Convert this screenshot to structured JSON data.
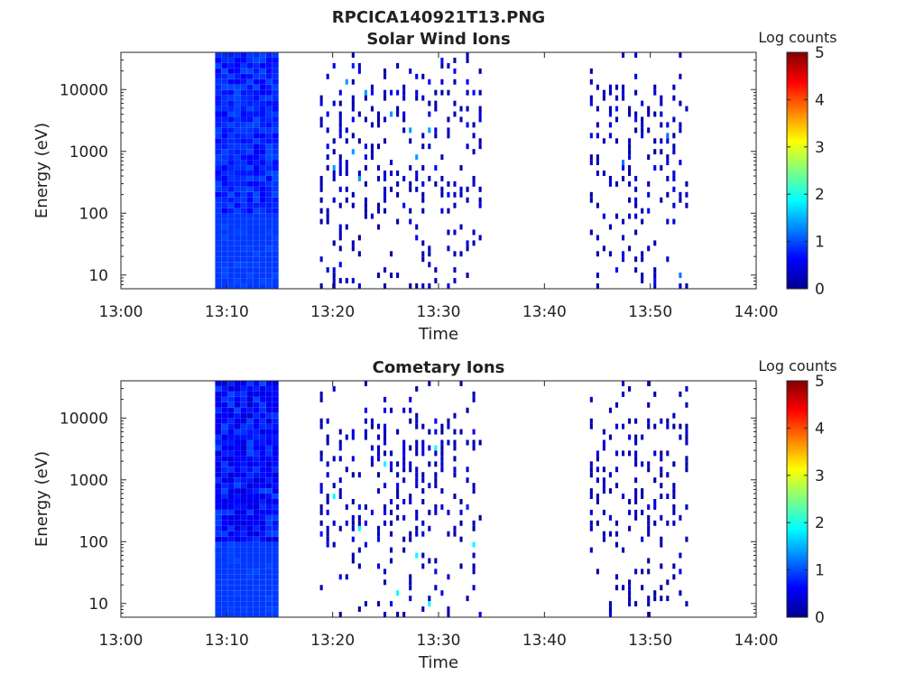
{
  "figure": {
    "title": "RPCICA140921T13.PNG"
  },
  "colormap": {
    "name": "jet",
    "stops": [
      "#00008f",
      "#0000ff",
      "#0080ff",
      "#00ffff",
      "#80ff80",
      "#ffff00",
      "#ff8000",
      "#ff0000",
      "#800000"
    ]
  },
  "chart_data": [
    {
      "type": "heatmap",
      "title": "Solar Wind Ions",
      "xlabel": "Time",
      "ylabel": "Energy (eV)",
      "xticks": [
        "13:00",
        "13:10",
        "13:20",
        "13:30",
        "13:40",
        "13:50",
        "14:00"
      ],
      "xlim_minutes": [
        0,
        60
      ],
      "yscale": "log",
      "ylim": [
        6,
        40000
      ],
      "yticks": [
        10,
        100,
        1000,
        10000
      ],
      "ytick_labels": [
        "10",
        "100",
        "1000",
        "10000"
      ],
      "colorbar": {
        "label": "Log counts",
        "range": [
          0,
          5
        ],
        "ticks": [
          "0",
          "1",
          "2",
          "3",
          "4",
          "5"
        ]
      },
      "regions": [
        {
          "start_min": 8.9,
          "end_min": 15.1,
          "kind": "dense",
          "typical_log_counts": [
            0.6,
            1.0
          ]
        },
        {
          "start_min": 18.8,
          "end_min": 34.5,
          "kind": "sparse",
          "typical_log_counts": [
            0.1,
            0.8
          ],
          "peak_log_counts": 1.4
        },
        {
          "start_min": 44.3,
          "end_min": 54.0,
          "kind": "sparse",
          "typical_log_counts": [
            0.1,
            0.8
          ],
          "peak_log_counts": 1.2
        }
      ]
    },
    {
      "type": "heatmap",
      "title": "Cometary Ions",
      "xlabel": "Time",
      "ylabel": "Energy (eV)",
      "xticks": [
        "13:00",
        "13:10",
        "13:20",
        "13:30",
        "13:40",
        "13:50",
        "14:00"
      ],
      "xlim_minutes": [
        0,
        60
      ],
      "yscale": "log",
      "ylim": [
        6,
        40000
      ],
      "yticks": [
        10,
        100,
        1000,
        10000
      ],
      "ytick_labels": [
        "10",
        "100",
        "1000",
        "10000"
      ],
      "colorbar": {
        "label": "Log counts",
        "range": [
          0,
          5
        ],
        "ticks": [
          "0",
          "1",
          "2",
          "3",
          "4",
          "5"
        ]
      },
      "regions": [
        {
          "start_min": 8.9,
          "end_min": 15.1,
          "kind": "dense",
          "typical_log_counts": [
            0.4,
            1.0
          ]
        },
        {
          "start_min": 18.8,
          "end_min": 34.5,
          "kind": "sparse",
          "typical_log_counts": [
            0.1,
            0.8
          ],
          "peak_log_counts": 1.9
        },
        {
          "start_min": 44.3,
          "end_min": 54.0,
          "kind": "sparse",
          "typical_log_counts": [
            0.1,
            0.6
          ]
        }
      ]
    }
  ]
}
